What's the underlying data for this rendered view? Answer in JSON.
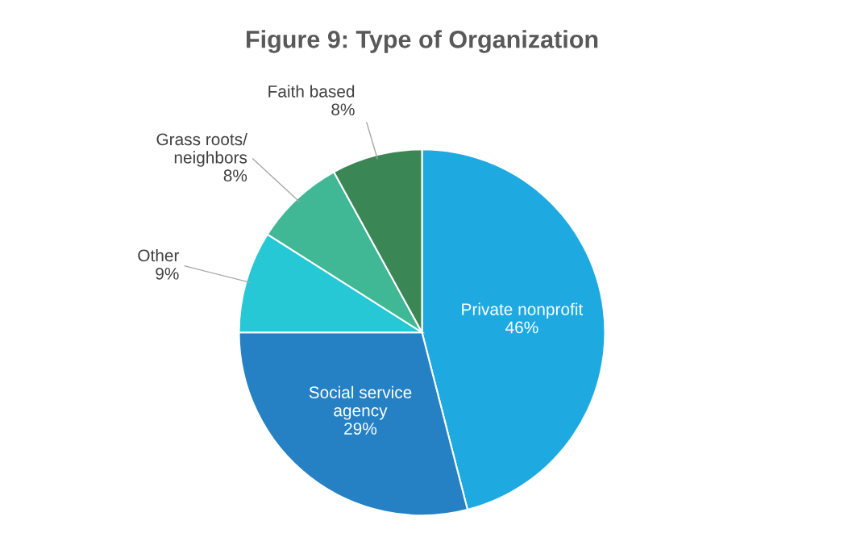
{
  "chart_data": {
    "type": "pie",
    "title": "Figure 9: Type of Organization",
    "categories": [
      "Private nonprofit",
      "Social service\nagency",
      "Other",
      "Grass roots/\nneighbors",
      "Faith based"
    ],
    "values": [
      46,
      29,
      9,
      8,
      8
    ],
    "colors": [
      "#1eaae0",
      "#2581c4",
      "#27c8d6",
      "#40b896",
      "#3a8755"
    ],
    "value_labels": [
      "46%",
      "29%",
      "9%",
      "8%",
      "8%"
    ]
  }
}
